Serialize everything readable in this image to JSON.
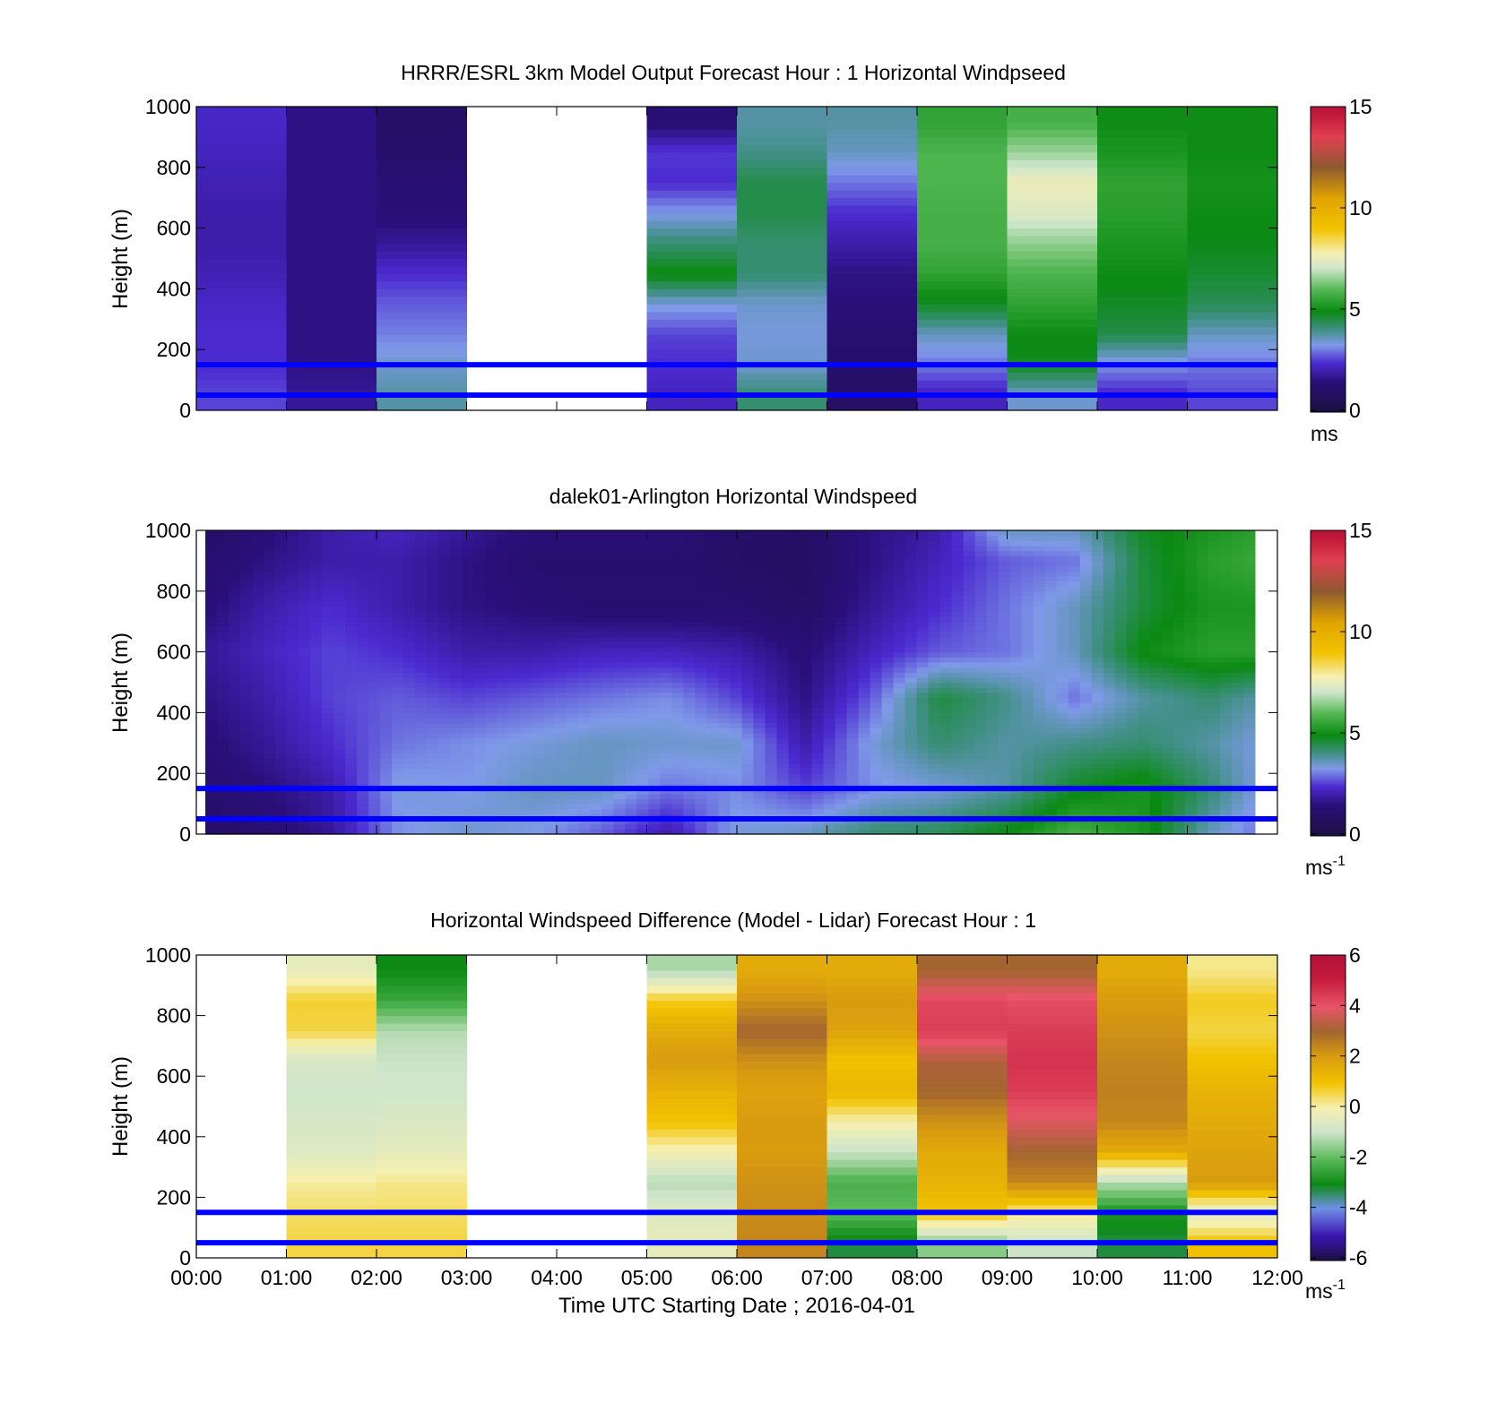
{
  "figure": {
    "xlabel": "Time UTC  Starting Date ; 2016-04-01",
    "xticks": [
      "00:00",
      "01:00",
      "02:00",
      "03:00",
      "04:00",
      "05:00",
      "06:00",
      "07:00",
      "08:00",
      "09:00",
      "10:00",
      "11:00",
      "12:00"
    ]
  },
  "chart_data": [
    {
      "type": "heatmap",
      "title": "HRRR/ESRL 3km Model Output   Forecast Hour : 1 Horizontal Windpseed",
      "xlabel": "",
      "ylabel": "Height (m)",
      "xlim_hours": [
        0,
        12
      ],
      "ylim": [
        0,
        1000
      ],
      "yticks": [
        "0",
        "200",
        "400",
        "600",
        "800",
        "1000"
      ],
      "colorbar": {
        "min": 0,
        "max": 15,
        "ticks": [
          "0",
          "5",
          "10",
          "15"
        ],
        "unit": "ms",
        "sup": "",
        "palette": "speed"
      },
      "reference_lines_m": [
        50,
        150
      ],
      "reference_line_color": "#0000ff",
      "columns": [
        {
          "hour": 0,
          "v": [
            2.6,
            2.4,
            2.4,
            2.3,
            2.1,
            2.0,
            2.0,
            2.1,
            2.2,
            2.3
          ]
        },
        {
          "hour": 1,
          "v": [
            1.8,
            1.6,
            1.6,
            1.6,
            1.6,
            1.6,
            1.6,
            1.6,
            1.6,
            1.6
          ]
        },
        {
          "hour": 2,
          "v": [
            3.8,
            3.5,
            3.1,
            2.8,
            2.4,
            1.8,
            1.4,
            1.3,
            1.1,
            1.0
          ]
        },
        {
          "hour": 3,
          "v": null
        },
        {
          "hour": 4,
          "v": null
        },
        {
          "hour": 5,
          "v": [
            2.2,
            2.4,
            2.6,
            3.4,
            5.0,
            4.2,
            3.3,
            2.4,
            2.5,
            1.3
          ]
        },
        {
          "hour": 6,
          "v": [
            4.2,
            3.5,
            3.4,
            3.5,
            4.2,
            4.2,
            4.5,
            4.5,
            4.0,
            3.8
          ]
        },
        {
          "hour": 7,
          "v": [
            1.0,
            1.1,
            1.2,
            1.5,
            1.6,
            2.0,
            2.4,
            3.0,
            3.6,
            3.8
          ]
        },
        {
          "hour": 8,
          "v": [
            2.2,
            3.0,
            3.6,
            4.8,
            5.5,
            5.8,
            5.8,
            5.9,
            5.9,
            5.5
          ]
        },
        {
          "hour": 9,
          "v": [
            3.5,
            4.8,
            5.0,
            5.5,
            5.9,
            6.5,
            7.3,
            7.6,
            6.6,
            5.8
          ]
        },
        {
          "hour": 10,
          "v": [
            2.3,
            3.2,
            4.5,
            4.8,
            5.0,
            5.2,
            5.4,
            5.5,
            5.2,
            5.0
          ]
        },
        {
          "hour": 11,
          "v": [
            2.6,
            3.0,
            3.6,
            4.4,
            4.7,
            4.9,
            5.0,
            5.1,
            5.0,
            5.0
          ]
        }
      ]
    },
    {
      "type": "heatmap",
      "title": "dalek01-Arlington  Horizontal Windspeed",
      "xlabel": "",
      "ylabel": "Height (m)",
      "xlim_hours": [
        0,
        12
      ],
      "ylim": [
        0,
        1000
      ],
      "yticks": [
        "0",
        "200",
        "400",
        "600",
        "800",
        "1000"
      ],
      "colorbar": {
        "min": 0,
        "max": 15,
        "ticks": [
          "0",
          "5",
          "10",
          "15"
        ],
        "unit": "ms",
        "sup": "-1",
        "palette": "speed"
      },
      "reference_lines_m": [
        50,
        150
      ],
      "reference_line_color": "#0000ff",
      "data_xlim_hours": [
        0.1,
        11.75
      ],
      "hours": [
        0.1,
        0.75,
        1.5,
        2.25,
        3,
        3.75,
        4.5,
        5.25,
        6,
        6.75,
        7.5,
        8.25,
        9,
        9.75,
        10.5,
        11.25,
        11.75
      ],
      "heights_m": [
        0,
        150,
        300,
        450,
        600,
        750,
        900,
        1000
      ],
      "grid": [
        [
          1.0,
          1.2,
          1.8,
          3.2,
          3.5,
          3.3,
          2.8,
          2.0,
          3.4,
          3.6,
          4.2,
          4.4,
          5.0,
          5.8,
          5.2,
          3.6,
          3.0
        ],
        [
          1.2,
          1.5,
          2.0,
          3.4,
          3.3,
          3.6,
          3.6,
          3.0,
          3.2,
          2.6,
          3.2,
          3.4,
          3.8,
          4.8,
          5.2,
          4.2,
          3.4
        ],
        [
          1.4,
          1.8,
          2.4,
          3.0,
          3.2,
          3.4,
          3.6,
          3.5,
          3.5,
          2.0,
          3.4,
          4.2,
          3.8,
          4.0,
          4.2,
          3.8,
          3.4
        ],
        [
          1.6,
          2.0,
          2.6,
          2.8,
          2.6,
          2.8,
          3.0,
          3.2,
          2.6,
          1.6,
          2.8,
          4.6,
          4.0,
          3.0,
          3.8,
          4.2,
          3.8
        ],
        [
          1.8,
          2.2,
          2.6,
          2.4,
          2.0,
          2.0,
          2.2,
          2.2,
          2.0,
          1.4,
          2.2,
          2.8,
          3.0,
          3.6,
          5.0,
          5.4,
          5.4
        ],
        [
          1.4,
          2.0,
          2.4,
          2.0,
          1.6,
          1.4,
          1.2,
          1.2,
          1.2,
          1.0,
          1.8,
          2.4,
          3.0,
          3.6,
          4.6,
          5.2,
          5.2
        ],
        [
          1.2,
          1.6,
          2.0,
          2.0,
          1.6,
          1.2,
          1.2,
          1.2,
          1.0,
          0.9,
          1.6,
          2.2,
          2.8,
          3.0,
          4.6,
          5.4,
          5.6
        ],
        [
          1.0,
          1.4,
          2.0,
          2.2,
          1.8,
          1.4,
          1.4,
          1.4,
          1.0,
          1.0,
          1.6,
          2.0,
          3.6,
          3.6,
          4.8,
          5.2,
          5.4
        ]
      ]
    },
    {
      "type": "heatmap",
      "title": "Horizontal Windspeed Difference (Model - Lidar) Forecast Hour : 1",
      "xlabel": "Time UTC  Starting Date ; 2016-04-01",
      "ylabel": "Height (m)",
      "xlim_hours": [
        0,
        12
      ],
      "ylim": [
        0,
        1000
      ],
      "yticks": [
        "0",
        "200",
        "400",
        "600",
        "800",
        "1000"
      ],
      "colorbar": {
        "min": -6,
        "max": 6,
        "ticks": [
          "-6",
          "-4",
          "-2",
          "0",
          "2",
          "4",
          "6"
        ],
        "unit": "ms",
        "sup": "-1",
        "palette": "diff"
      },
      "reference_lines_m": [
        50,
        150
      ],
      "reference_line_color": "#0000ff",
      "columns": [
        {
          "hour": 0,
          "v": null
        },
        {
          "hour": 1,
          "v": [
            0.6,
            0.4,
            0.1,
            -0.6,
            -0.8,
            -0.9,
            -0.8,
            0.6,
            0.7,
            -0.4
          ]
        },
        {
          "hour": 2,
          "v": [
            0.6,
            0.4,
            0.2,
            -0.4,
            -0.7,
            -0.9,
            -1.0,
            -1.2,
            -2.4,
            -3.0
          ]
        },
        {
          "hour": 3,
          "v": null
        },
        {
          "hour": 4,
          "v": null
        },
        {
          "hour": 5,
          "v": [
            -0.4,
            -0.6,
            -1.2,
            -0.1,
            1.0,
            1.4,
            2.0,
            1.6,
            0.8,
            -1.3
          ]
        },
        {
          "hour": 6,
          "v": [
            2.4,
            2.3,
            2.2,
            2.0,
            2.0,
            1.8,
            2.2,
            3.0,
            2.2,
            1.6
          ]
        },
        {
          "hour": 7,
          "v": [
            -3.2,
            -2.0,
            -2.2,
            -1.0,
            0.0,
            1.3,
            1.0,
            1.8,
            2.0,
            1.6
          ]
        },
        {
          "hour": 8,
          "v": [
            -1.6,
            1.0,
            1.4,
            1.6,
            2.2,
            3.0,
            3.2,
            4.4,
            4.2,
            3.0
          ]
        },
        {
          "hour": 9,
          "v": [
            -1.0,
            0.2,
            2.4,
            3.0,
            3.8,
            4.4,
            4.6,
            4.4,
            4.1,
            3.0
          ]
        },
        {
          "hour": 10,
          "v": [
            -3.2,
            -2.8,
            -1.2,
            1.6,
            2.4,
            2.5,
            2.4,
            2.2,
            2.0,
            1.6
          ]
        },
        {
          "hour": 11,
          "v": [
            1.0,
            -0.6,
            2.0,
            1.8,
            1.6,
            1.4,
            1.0,
            0.6,
            0.8,
            0.2
          ]
        }
      ]
    }
  ]
}
